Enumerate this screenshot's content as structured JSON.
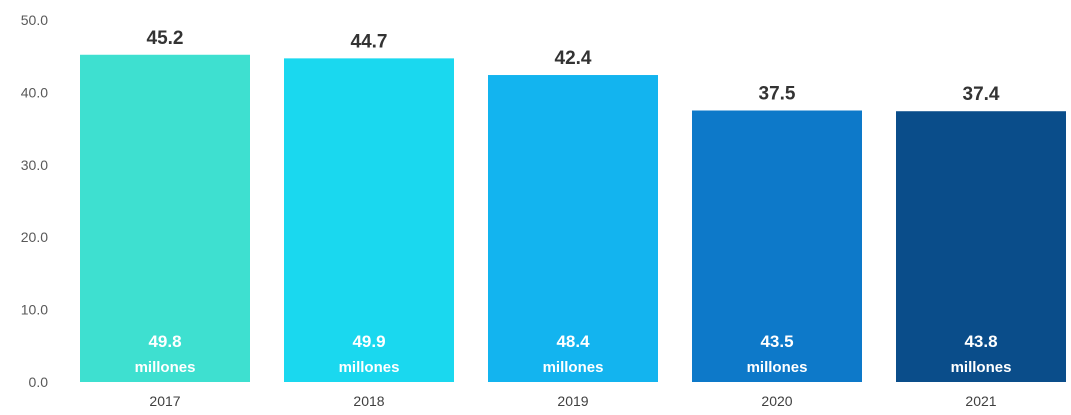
{
  "chart_data": {
    "type": "bar",
    "categories": [
      "2017",
      "2018",
      "2019",
      "2020",
      "2021"
    ],
    "values": [
      45.2,
      44.7,
      42.4,
      37.5,
      37.4
    ],
    "value_labels": [
      "45.2",
      "44.7",
      "42.4",
      "37.5",
      "37.4"
    ],
    "inner_values": [
      "49.8",
      "49.9",
      "48.4",
      "43.5",
      "43.8"
    ],
    "inner_unit": "millones",
    "yticks": [
      "0.0",
      "10.0",
      "20.0",
      "30.0",
      "40.0",
      "50.0"
    ],
    "ylim": [
      0,
      50
    ],
    "colors": [
      "#3ee0d0",
      "#1ad8ef",
      "#13b4ef",
      "#0d79c9",
      "#0a4d8a"
    ],
    "grid": false,
    "title": "",
    "xlabel": "",
    "ylabel": ""
  }
}
